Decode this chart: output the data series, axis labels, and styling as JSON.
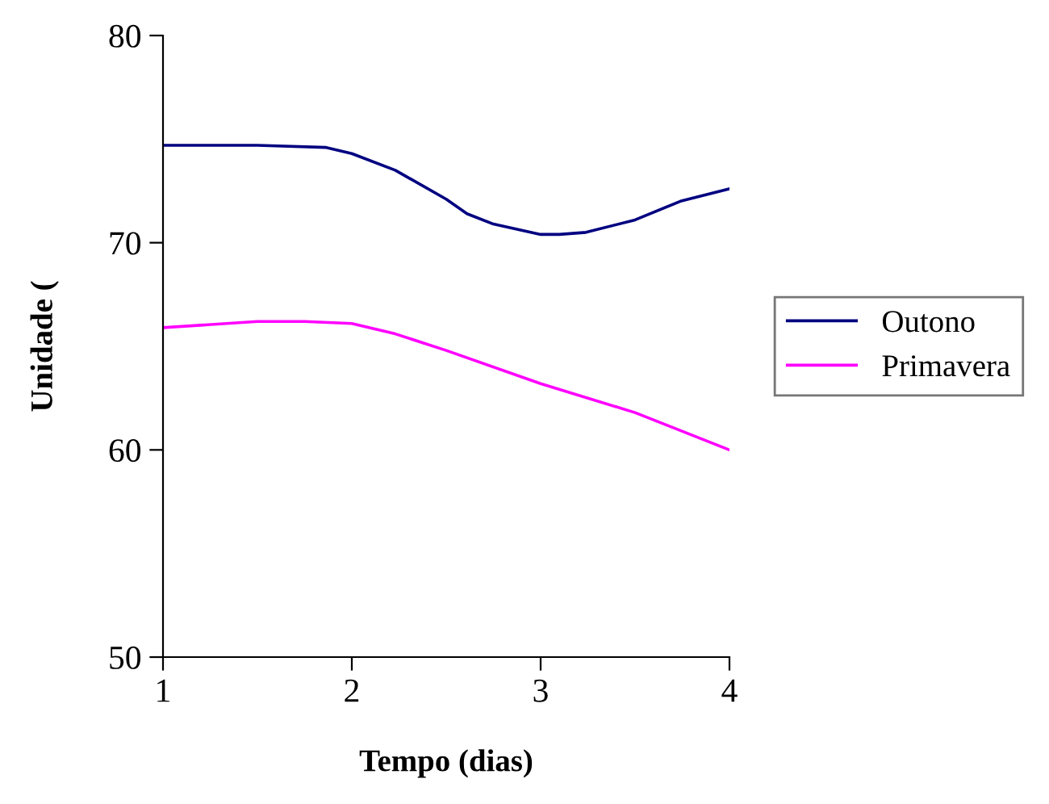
{
  "chart_data": {
    "type": "line",
    "xlabel": "Tempo (dias)",
    "ylabel": "Unidade (",
    "xlim": [
      1,
      4
    ],
    "xticks": [
      1,
      2,
      3,
      4
    ],
    "ylim": [
      50,
      80
    ],
    "yticks": [
      50,
      60,
      70,
      80
    ],
    "grid": false,
    "legend": "right",
    "marker": "none",
    "line_style": "solid",
    "series": [
      {
        "name": "Outono",
        "color": "#000080",
        "x": [
          1,
          1.5,
          1.86,
          2,
          2.23,
          2.5,
          2.61,
          2.75,
          3,
          3.1,
          3.24,
          3.5,
          3.74,
          4
        ],
        "values": [
          74.7,
          74.7,
          74.6,
          74.3,
          73.5,
          72.1,
          71.4,
          70.9,
          70.4,
          70.4,
          70.5,
          71.1,
          72.0,
          72.6
        ]
      },
      {
        "name": "Primavera",
        "color": "#ff00ff",
        "x": [
          1,
          1.5,
          1.75,
          2,
          2.23,
          2.5,
          3,
          3.5,
          4
        ],
        "values": [
          65.9,
          66.2,
          66.2,
          66.1,
          65.6,
          64.8,
          63.2,
          61.8,
          60.0
        ]
      }
    ]
  }
}
